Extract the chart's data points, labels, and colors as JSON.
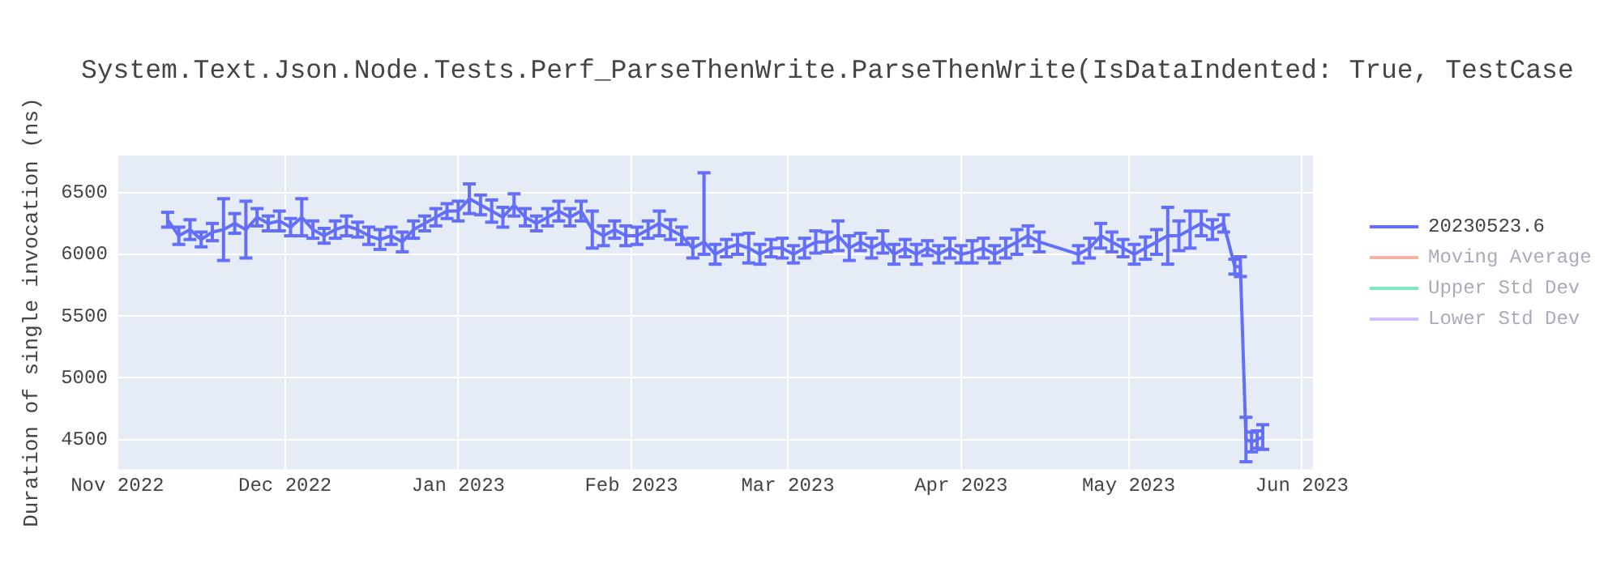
{
  "chart_data": {
    "type": "line",
    "title": "System.Text.Json.Node.Tests.Perf_ParseThenWrite.ParseThenWrite(IsDataIndented: True, TestCase",
    "ylabel": "Duration of single invocation (ns)",
    "x": [
      "2022-11-10",
      "2022-11-12",
      "2022-11-14",
      "2022-11-16",
      "2022-11-18",
      "2022-11-20",
      "2022-11-22",
      "2022-11-24",
      "2022-11-26",
      "2022-11-28",
      "2022-11-30",
      "2022-12-02",
      "2022-12-04",
      "2022-12-06",
      "2022-12-08",
      "2022-12-10",
      "2022-12-12",
      "2022-12-14",
      "2022-12-16",
      "2022-12-18",
      "2022-12-20",
      "2022-12-22",
      "2022-12-24",
      "2022-12-26",
      "2022-12-28",
      "2022-12-30",
      "2023-01-01",
      "2023-01-03",
      "2023-01-05",
      "2023-01-07",
      "2023-01-09",
      "2023-01-11",
      "2023-01-13",
      "2023-01-15",
      "2023-01-17",
      "2023-01-19",
      "2023-01-21",
      "2023-01-23",
      "2023-01-25",
      "2023-01-27",
      "2023-01-29",
      "2023-01-31",
      "2023-02-02",
      "2023-02-04",
      "2023-02-06",
      "2023-02-08",
      "2023-02-10",
      "2023-02-12",
      "2023-02-14",
      "2023-02-16",
      "2023-02-18",
      "2023-02-20",
      "2023-02-22",
      "2023-02-24",
      "2023-02-26",
      "2023-02-28",
      "2023-03-02",
      "2023-03-04",
      "2023-03-06",
      "2023-03-08",
      "2023-03-10",
      "2023-03-12",
      "2023-03-14",
      "2023-03-16",
      "2023-03-18",
      "2023-03-20",
      "2023-03-22",
      "2023-03-24",
      "2023-03-26",
      "2023-03-28",
      "2023-03-30",
      "2023-04-01",
      "2023-04-03",
      "2023-04-05",
      "2023-04-07",
      "2023-04-09",
      "2023-04-11",
      "2023-04-13",
      "2023-04-15",
      "2023-04-22",
      "2023-04-24",
      "2023-04-26",
      "2023-04-28",
      "2023-04-30",
      "2023-05-02",
      "2023-05-04",
      "2023-05-06",
      "2023-05-08",
      "2023-05-10",
      "2023-05-12",
      "2023-05-14",
      "2023-05-16",
      "2023-05-18",
      "2023-05-20",
      "2023-05-21",
      "2023-05-22",
      "2023-05-23",
      "2023-05-24",
      "2023-05-25"
    ],
    "series": [
      {
        "name": "20230523.6",
        "color": "#636efa",
        "values": [
          6280,
          6150,
          6200,
          6120,
          6180,
          6200,
          6250,
          6200,
          6300,
          6250,
          6270,
          6220,
          6300,
          6200,
          6150,
          6200,
          6230,
          6200,
          6150,
          6120,
          6150,
          6100,
          6200,
          6250,
          6300,
          6350,
          6350,
          6450,
          6400,
          6350,
          6300,
          6400,
          6300,
          6250,
          6300,
          6350,
          6300,
          6350,
          6200,
          6150,
          6200,
          6150,
          6150,
          6200,
          6250,
          6200,
          6150,
          6050,
          6100,
          6000,
          6050,
          6080,
          6050,
          6000,
          6050,
          6050,
          6000,
          6050,
          6100,
          6100,
          6150,
          6050,
          6100,
          6050,
          6100,
          6000,
          6050,
          6000,
          6050,
          6000,
          6050,
          6000,
          6020,
          6050,
          6000,
          6050,
          6100,
          6150,
          6100,
          6000,
          6050,
          6150,
          6100,
          6050,
          6000,
          6050,
          6100,
          6150,
          6150,
          6200,
          6250,
          6200,
          6250,
          5900,
          5900,
          4500,
          4480,
          4500,
          4520
        ],
        "errors": [
          60,
          70,
          80,
          60,
          70,
          250,
          80,
          230,
          70,
          60,
          80,
          70,
          150,
          70,
          60,
          70,
          80,
          60,
          70,
          80,
          70,
          80,
          70,
          60,
          70,
          60,
          80,
          120,
          80,
          90,
          80,
          90,
          70,
          60,
          70,
          80,
          70,
          80,
          150,
          80,
          70,
          80,
          70,
          70,
          100,
          80,
          70,
          80,
          [
            6000,
            6660
          ],
          80,
          70,
          80,
          120,
          80,
          70,
          80,
          70,
          80,
          90,
          80,
          120,
          100,
          70,
          80,
          90,
          80,
          70,
          80,
          60,
          70,
          80,
          70,
          90,
          80,
          70,
          80,
          100,
          80,
          80,
          70,
          80,
          100,
          80,
          70,
          80,
          90,
          100,
          230,
          120,
          150,
          100,
          80,
          70,
          60,
          80,
          180,
          80,
          70,
          100
        ]
      },
      {
        "name": "Moving Average",
        "color": "#f6b2a4",
        "values": [
          null,
          null,
          null,
          null,
          null,
          null,
          null,
          null,
          null,
          null,
          null,
          null,
          null,
          null,
          null,
          null,
          null,
          null,
          null,
          null,
          null,
          null,
          null,
          null,
          null,
          null,
          null,
          null,
          null,
          null,
          null,
          null,
          null,
          null,
          null,
          null,
          null,
          null,
          null,
          null,
          null,
          null,
          null,
          null,
          null,
          null,
          null,
          null,
          null,
          null,
          null,
          null,
          null,
          null,
          null,
          null,
          null,
          null,
          null,
          null,
          null,
          null,
          null,
          null,
          null,
          null,
          null,
          null,
          null,
          null,
          null,
          null,
          null,
          null,
          null,
          null,
          null,
          null,
          null,
          null,
          null,
          null,
          null,
          null,
          null,
          null,
          null,
          null,
          null,
          null,
          null,
          null,
          null,
          null,
          null,
          null,
          null,
          null,
          null
        ]
      },
      {
        "name": "Upper Std Dev",
        "color": "#7ee8c3",
        "values": [
          null,
          null,
          null,
          null,
          null,
          null,
          null,
          null,
          null,
          null,
          null,
          null,
          null,
          null,
          null,
          null,
          null,
          null,
          null,
          null,
          null,
          null,
          null,
          null,
          null,
          null,
          null,
          null,
          null,
          null,
          null,
          null,
          null,
          null,
          null,
          null,
          null,
          null,
          null,
          null,
          null,
          null,
          null,
          null,
          null,
          null,
          null,
          null,
          null,
          null,
          null,
          null,
          null,
          null,
          null,
          null,
          null,
          null,
          null,
          null,
          null,
          null,
          null,
          null,
          null,
          null,
          null,
          null,
          null,
          null,
          null,
          null,
          null,
          null,
          null,
          null,
          null,
          null,
          null,
          null,
          null,
          null,
          null,
          null,
          null,
          null,
          null,
          null,
          null,
          null,
          null,
          null,
          null,
          null,
          null,
          null,
          null,
          null,
          null
        ]
      },
      {
        "name": "Lower Std Dev",
        "color": "#d3bdfb",
        "values": [
          null,
          null,
          null,
          null,
          null,
          null,
          null,
          null,
          null,
          null,
          null,
          null,
          null,
          null,
          null,
          null,
          null,
          null,
          null,
          null,
          null,
          null,
          null,
          null,
          null,
          null,
          null,
          null,
          null,
          null,
          null,
          null,
          null,
          null,
          null,
          null,
          null,
          null,
          null,
          null,
          null,
          null,
          null,
          null,
          null,
          null,
          null,
          null,
          null,
          null,
          null,
          null,
          null,
          null,
          null,
          null,
          null,
          null,
          null,
          null,
          null,
          null,
          null,
          null,
          null,
          null,
          null,
          null,
          null,
          null,
          null,
          null,
          null,
          null,
          null,
          null,
          null,
          null,
          null,
          null,
          null,
          null,
          null,
          null,
          null,
          null,
          null,
          null,
          null,
          null,
          null,
          null,
          null,
          null,
          null,
          null,
          null,
          null,
          null
        ]
      }
    ],
    "xlim": [
      "2022-11-01",
      "2023-06-03"
    ],
    "xticks": [
      {
        "value": "2022-11-01",
        "label": "Nov 2022"
      },
      {
        "value": "2022-12-01",
        "label": "Dec 2022"
      },
      {
        "value": "2023-01-01",
        "label": "Jan 2023"
      },
      {
        "value": "2023-02-01",
        "label": "Feb 2023"
      },
      {
        "value": "2023-03-01",
        "label": "Mar 2023"
      },
      {
        "value": "2023-04-01",
        "label": "Apr 2023"
      },
      {
        "value": "2023-05-01",
        "label": "May 2023"
      },
      {
        "value": "2023-06-01",
        "label": "Jun 2023"
      }
    ],
    "ylim": [
      4260,
      6800
    ],
    "yticks": [
      4500,
      5000,
      5500,
      6000,
      6500
    ],
    "grid": true,
    "legend": "top right",
    "marker": "none",
    "line_style": "solid"
  }
}
